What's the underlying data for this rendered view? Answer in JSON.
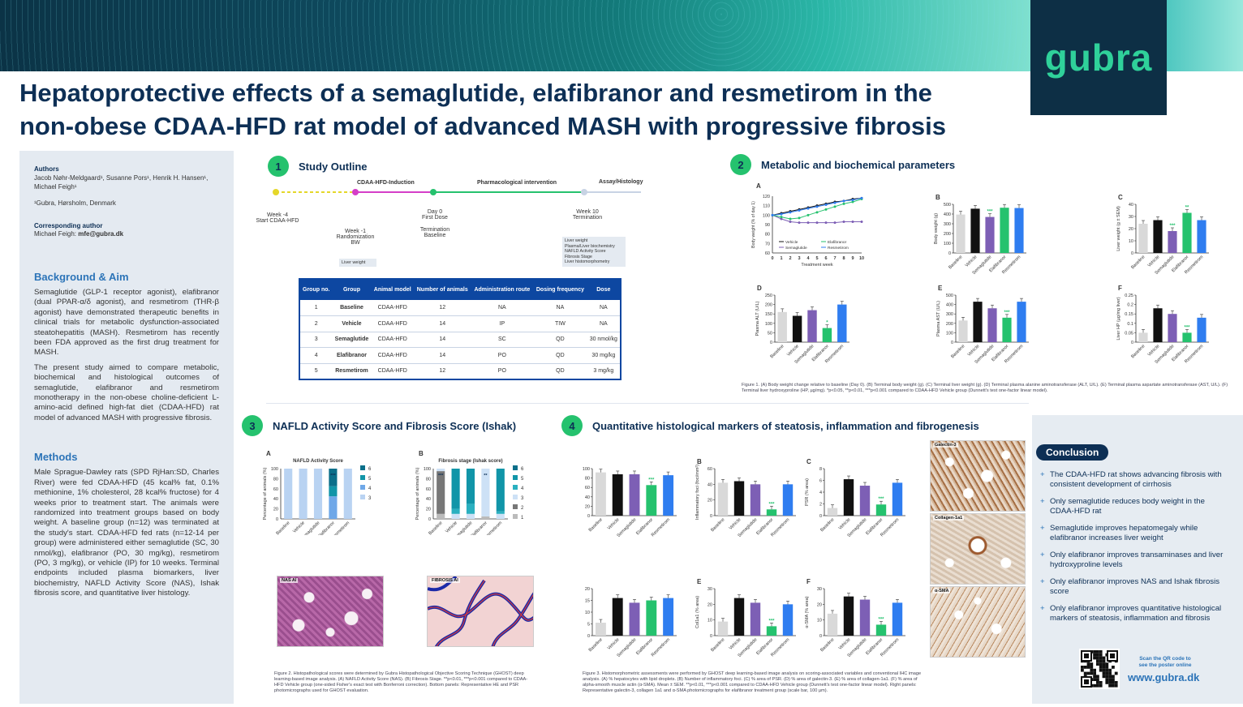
{
  "logo": "gubra",
  "title_line1": "Hepatoprotective effects of a semaglutide, elafibranor and resmetirom in the",
  "title_line2": "non-obese CDAA-HFD rat model of advanced MASH with progressive fibrosis",
  "authors": {
    "heading": "Authors",
    "names": "Jacob Nøhr-Meldgaard¹, Susanne Pors¹, Henrik H. Hansen¹, Michael Feigh¹",
    "affiliation": "¹Gubra, Hørsholm, Denmark",
    "corr_heading": "Corresponding author",
    "corr_name": "Michael Feigh: ",
    "corr_email": "mfe@gubra.dk"
  },
  "background": {
    "heading": "Background & Aim",
    "p1": "Semaglutide (GLP-1 receptor agonist), elafibranor (dual PPAR-α/δ agonist), and resmetirom (THR-β agonist) have demonstrated therapeutic benefits in clinical trials for metabolic dysfunction-associated steatohepatitis (MASH). Resmetirom has recently been FDA approved as the first drug treatment for MASH.",
    "p2": "The present study aimed to compare metabolic, biochemical and histological outcomes of semaglutide, elafibranor and resmetirom monotherapy in the non-obese choline-deficient L-amino-acid defined high-fat diet (CDAA-HFD) rat model of advanced MASH with progressive fibrosis."
  },
  "methods": {
    "heading": "Methods",
    "p1": "Male Sprague-Dawley rats (SPD RjHan:SD, Charles River) were fed CDAA-HFD (45 kcal% fat, 0.1% methionine, 1% cholesterol, 28 kcal% fructose) for 4 weeks prior to treatment start. The animals were randomized into treatment groups based on body weight. A baseline group (n=12) was terminated at the study's start. CDAA-HFD fed rats (n=12-14 per group) were administered either semaglutide (SC, 30 nmol/kg), elafibranor (PO, 30 mg/kg), resmetirom (PO, 3 mg/kg), or vehicle (IP) for 10 weeks. Terminal endpoints included plasma biomarkers, liver biochemistry, NAFLD Activity Score (NAS), Ishak fibrosis score, and quantitative liver histology."
  },
  "sections": {
    "s1": {
      "num": "1",
      "label": "Study Outline"
    },
    "s2": {
      "num": "2",
      "label": "Metabolic and biochemical parameters"
    },
    "s3": {
      "num": "3",
      "label": "NAFLD Activity Score and Fibrosis Score (Ishak)"
    },
    "s4": {
      "num": "4",
      "label": "Quantitative histological markers of steatosis, inflammation and fibrogenesis"
    }
  },
  "timeline": {
    "phase1": "CDAA-HFD-Induction",
    "phase2": "Pharmacological intervention",
    "phase3": "Assay/Histology",
    "w4": "Week -4",
    "w4b": "Start CDAA-HFD",
    "w1": "Week -1",
    "w1b": "Randomization",
    "w1c": "BW",
    "d0": "Day 0",
    "d0b": "First Dose",
    "term_a": "Termination",
    "term_b": "Baseline",
    "w10": "Week 10",
    "w10b": "Termination",
    "box1": "Liver weight",
    "box2_1": "Liver weight",
    "box2_2": "Plasma/Liver biochemistry",
    "box2_3": "NAFLD Activity Score",
    "box2_4": "Fibrosis Stage",
    "box2_5": "Liver histomorphometry"
  },
  "design_table": {
    "headers": [
      "Group no.",
      "Group",
      "Animal model",
      "Number of animals",
      "Administration route",
      "Dosing frequency",
      "Dose"
    ],
    "rows": [
      [
        "1",
        "Baseline",
        "CDAA-HFD",
        "12",
        "NA",
        "NA",
        "NA"
      ],
      [
        "2",
        "Vehicle",
        "CDAA-HFD",
        "14",
        "IP",
        "TIW",
        "NA"
      ],
      [
        "3",
        "Semaglutide",
        "CDAA-HFD",
        "14",
        "SC",
        "QD",
        "30 nmol/kg"
      ],
      [
        "4",
        "Elafibranor",
        "CDAA-HFD",
        "14",
        "PO",
        "QD",
        "30 mg/kg"
      ],
      [
        "5",
        "Resmetirom",
        "CDAA-HFD",
        "12",
        "PO",
        "QD",
        "3 mg/kg"
      ]
    ]
  },
  "colors": {
    "baseline": "#d9d9d9",
    "vehicle": "#111111",
    "semaglutide": "#7d5fb5",
    "elafibranor": "#25c26e",
    "resmetirom": "#2f7df0",
    "navy": "#0d2f55",
    "green": "#25c26e"
  },
  "groups": [
    "Baseline",
    "Vehicle",
    "Semaglutide",
    "Elafibranor",
    "Resmetirom"
  ],
  "chart_data": [
    {
      "id": "2A",
      "type": "line",
      "ylabel": "Body weight (% of day 1)",
      "xlabel": "Treatment week",
      "x": [
        0,
        1,
        2,
        3,
        4,
        5,
        6,
        7,
        8,
        9,
        10
      ],
      "ylim": [
        60,
        120
      ],
      "yticks": [
        60,
        70,
        80,
        90,
        100,
        110,
        120
      ],
      "series": [
        {
          "name": "Vehicle",
          "values": [
            100,
            102,
            104,
            106,
            108,
            110,
            112,
            114,
            115,
            117,
            118
          ]
        },
        {
          "name": "Semaglutide",
          "values": [
            100,
            96,
            93,
            92,
            92,
            92,
            92,
            92,
            93,
            93,
            93
          ]
        },
        {
          "name": "Elafibranor",
          "values": [
            100,
            98,
            96,
            97,
            100,
            103,
            106,
            109,
            112,
            114,
            117
          ]
        },
        {
          "name": "Resmetirom",
          "values": [
            100,
            101,
            103,
            105,
            107,
            109,
            111,
            113,
            115,
            116,
            118
          ]
        }
      ]
    },
    {
      "id": "2B",
      "type": "bar",
      "ylabel": "Body weight (g)",
      "ylim": [
        0,
        500
      ],
      "yticks": [
        0,
        100,
        200,
        300,
        400,
        500
      ],
      "values": [
        395,
        455,
        370,
        465,
        462
      ],
      "stars": [
        "",
        "",
        "***",
        "",
        ""
      ]
    },
    {
      "id": "2C",
      "type": "bar",
      "ylabel": "Liver weight (g ± SEM)",
      "ylim": [
        0,
        40
      ],
      "yticks": [
        0,
        10,
        20,
        30,
        40
      ],
      "values": [
        24,
        27,
        18,
        33,
        27
      ],
      "stars": [
        "",
        "",
        "***",
        "**",
        ""
      ]
    },
    {
      "id": "2D",
      "type": "bar",
      "ylabel": "Plasma ALT (U/L)",
      "ylim": [
        0,
        250
      ],
      "yticks": [
        0,
        50,
        100,
        150,
        200,
        250
      ],
      "values": [
        160,
        140,
        170,
        75,
        200
      ],
      "stars": [
        "",
        "",
        "",
        "*",
        ""
      ]
    },
    {
      "id": "2E",
      "type": "bar",
      "ylabel": "Plasma AST (U/L)",
      "ylim": [
        0,
        500
      ],
      "yticks": [
        0,
        100,
        200,
        300,
        400,
        500
      ],
      "values": [
        230,
        430,
        360,
        260,
        430
      ],
      "stars": [
        "",
        "",
        "",
        "***",
        ""
      ]
    },
    {
      "id": "2F",
      "type": "bar",
      "ylabel": "Liver HP (µg/mg liver)",
      "ylim": [
        0,
        0.25
      ],
      "yticks": [
        0,
        0.05,
        0.1,
        0.15,
        0.2,
        0.25
      ],
      "values": [
        0.05,
        0.18,
        0.15,
        0.05,
        0.13
      ],
      "stars": [
        "",
        "",
        "",
        "***",
        ""
      ]
    },
    {
      "id": "3A",
      "type": "bar",
      "title": "NAFLD Activity Score",
      "ylabel": "Percentage of animals (%)",
      "ylim": [
        0,
        100
      ],
      "yticks": [
        0,
        20,
        40,
        60,
        80,
        100
      ],
      "legend": [
        "6",
        "5",
        "4",
        "3"
      ],
      "stacks": [
        [
          0,
          0,
          0,
          100
        ],
        [
          0,
          0,
          0,
          100
        ],
        [
          0,
          0,
          0,
          100
        ],
        [
          35,
          20,
          45,
          0
        ],
        [
          0,
          0,
          0,
          100
        ]
      ],
      "stars": [
        "",
        "",
        "",
        "***",
        ""
      ]
    },
    {
      "id": "3B",
      "type": "bar",
      "title": "Fibrosis stage (Ishak score)",
      "ylabel": "Percentage of animals (%)",
      "ylim": [
        0,
        100
      ],
      "yticks": [
        0,
        20,
        40,
        60,
        80,
        100
      ],
      "legend": [
        "6",
        "5",
        "4",
        "3",
        "2",
        "1"
      ],
      "stacks": [
        [
          0,
          0,
          0,
          5,
          85,
          10
        ],
        [
          0,
          80,
          10,
          10,
          0,
          0
        ],
        [
          0,
          70,
          20,
          10,
          0,
          0
        ],
        [
          0,
          0,
          0,
          95,
          0,
          5
        ],
        [
          0,
          85,
          5,
          10,
          0,
          0
        ]
      ],
      "stars": [
        "***",
        "",
        "",
        "**",
        ""
      ]
    },
    {
      "id": "4A",
      "type": "bar",
      "ylabel": "Hepatocytes with lipid droplets (%)",
      "ylim": [
        0,
        100
      ],
      "yticks": [
        0,
        20,
        40,
        60,
        80,
        100
      ],
      "values": [
        92,
        88,
        88,
        65,
        86
      ],
      "stars": [
        "",
        "",
        "",
        "***",
        ""
      ]
    },
    {
      "id": "4B",
      "type": "bar",
      "ylabel": "Inflammatory foci (foci/mm²)",
      "ylim": [
        0,
        60
      ],
      "yticks": [
        0,
        20,
        40,
        60
      ],
      "values": [
        42,
        44,
        40,
        8,
        40
      ],
      "stars": [
        "",
        "",
        "",
        "***",
        ""
      ]
    },
    {
      "id": "4C",
      "type": "bar",
      "ylabel": "PSR (% area)",
      "ylim": [
        0,
        8
      ],
      "yticks": [
        0,
        2,
        4,
        6,
        8
      ],
      "values": [
        1.3,
        6.2,
        5.1,
        1.9,
        5.6
      ],
      "stars": [
        "",
        "",
        "",
        "***",
        ""
      ]
    },
    {
      "id": "4D",
      "type": "bar",
      "ylabel": "Galectin-3 (% area)",
      "ylim": [
        0,
        20
      ],
      "yticks": [
        0,
        5,
        10,
        15,
        20
      ],
      "values": [
        5.5,
        16,
        14,
        15,
        16
      ],
      "stars": [
        "",
        "",
        "",
        "",
        ""
      ]
    },
    {
      "id": "4E",
      "type": "bar",
      "ylabel": "Col1a1 (% area)",
      "ylim": [
        0,
        30
      ],
      "yticks": [
        0,
        10,
        20,
        30
      ],
      "values": [
        9,
        24,
        21,
        6,
        20
      ],
      "stars": [
        "",
        "",
        "",
        "***",
        ""
      ]
    },
    {
      "id": "4F",
      "type": "bar",
      "ylabel": "α-SMA (% area)",
      "ylim": [
        0,
        30
      ],
      "yticks": [
        0,
        10,
        20,
        30
      ],
      "values": [
        14,
        25,
        23,
        7,
        21
      ],
      "stars": [
        "",
        "",
        "",
        "***",
        ""
      ]
    }
  ],
  "legend_2a": [
    "Vehicle",
    "Elafibranor",
    "Semaglutide",
    "Resmetirom"
  ],
  "letters": {
    "a": "A",
    "b": "B",
    "c": "C",
    "d": "D",
    "e": "E",
    "f": "F"
  },
  "image_labels": {
    "nas": "NAS AI",
    "fibrosis": "FIBROSIS AI",
    "gal": "Galectin-3",
    "col": "Collagen-1a1",
    "sma": "α-SMA"
  },
  "fig1_caption": "Figure 1. (A) Body weight change relative to baseline (Day 0). (B) Terminal body weight (g). (C) Terminal liver weight (g). (D) Terminal plasma alanine aminotransferase (ALT, U/L). (E) Terminal plasma aspartate aminotransferase (AST, U/L). (F) Terminal liver hydroxyproline (HP, µg/mg). *p<0.05, **p<0.01, ***p<0.001 compared to CDAA-HFD Vehicle group (Dunnett's test one-factor linear model).",
  "fig2_caption": "Figure 2. Histopathological scores were determined by Gubra Histopathological Objective Scoring Technique (GHOST) deep learning-based image analysis. (A) NAFLD Activity Score (NAS). (B) Fibrosis Stage. **p<0.01, ***p<0.001 compared to CDAA-HFD Vehicle group (one-sided Fisher's exact test with Bonferroni correction). Bottom panels: Representative HE and PSR photomicrographs used for GHOST evaluation.",
  "fig3_caption": "Figure 3. Histomorphometric assessments were performed by GHOST deep learning-based image analysis on scoring-associated variables and conventional IHC image analysis. (A) % hepatocytes with lipid droplets. (B) Number of inflammatory foci. (C) % area of PSR. (D) % area of galectin-3. (E) % area of collagen-1a1. (F) % area of alpha-smooth muscle actin (α-SMA). Mean ± SEM. **p<0.01, ***p<0.001 compared to CDAA-HFD Vehicle group (Dunnett's test one-factor linear model). Right panels: Representative galectin-3, collagen 1a1 and α-SMA photomicrographs for elafibranor treatment group (scale bar, 100 µm).",
  "conclusion": {
    "badge": "Conclusion",
    "items": [
      "The CDAA-HFD rat shows advancing fibrosis with consistent development of cirrhosis",
      "Only semaglutide reduces body weight in the CDAA-HFD rat",
      "Semaglutide improves hepatomegaly while elafibranor increases liver weight",
      "Only elafibranor improves transaminases and liver hydroxyproline levels",
      "Only elafibranor improves NAS and Ishak fibrosis score",
      "Only elafibranor improves quantitative histological markers of steatosis, inflammation and fibrosis"
    ],
    "qr_text1": "Scan the QR code to",
    "qr_text2": "see the poster online",
    "url": "www.gubra.dk"
  }
}
